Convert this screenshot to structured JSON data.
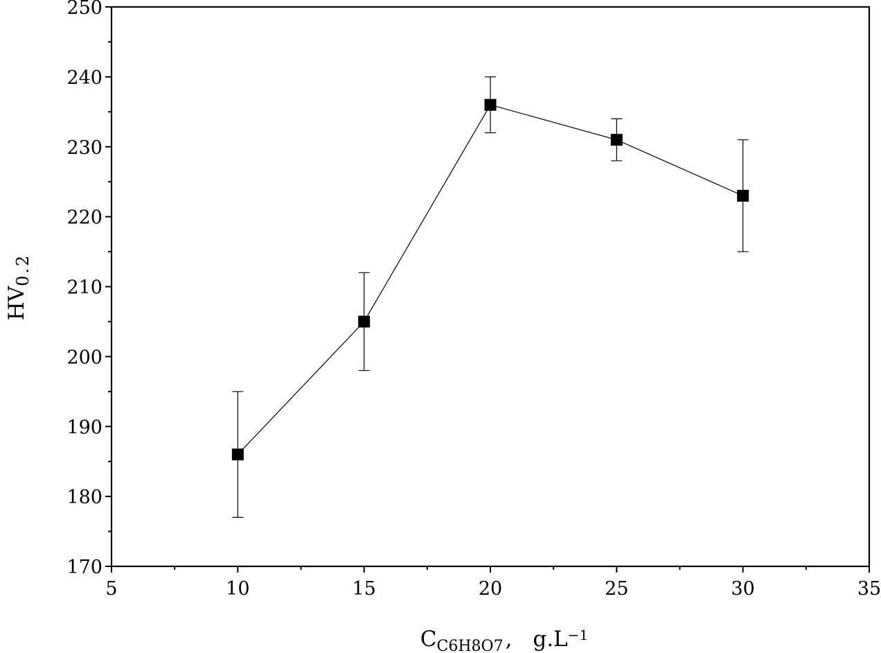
{
  "chart_data": {
    "type": "line",
    "title": "",
    "xlabel": {
      "main": "C",
      "sub": "C6H8O7",
      "sep": ",",
      "unit": "g.L",
      "sup": "−1"
    },
    "ylabel": {
      "main": "HV",
      "sub": "0.2"
    },
    "xlim": [
      5,
      35
    ],
    "ylim": [
      170,
      250
    ],
    "x_ticks": [
      5,
      10,
      15,
      20,
      25,
      30,
      35
    ],
    "y_ticks": [
      170,
      180,
      190,
      200,
      210,
      220,
      230,
      240,
      250
    ],
    "x_minor_step": 2.5,
    "y_minor_step": 5,
    "grid": false,
    "marker": "square",
    "series_color": "#000000",
    "series": [
      {
        "points": [
          {
            "x": 10,
            "y": 186,
            "err_low": 177,
            "err_high": 195
          },
          {
            "x": 15,
            "y": 205,
            "err_low": 198,
            "err_high": 212
          },
          {
            "x": 20,
            "y": 236,
            "err_low": 232,
            "err_high": 240
          },
          {
            "x": 25,
            "y": 231,
            "err_low": 228,
            "err_high": 234
          },
          {
            "x": 30,
            "y": 223,
            "err_low": 215,
            "err_high": 231
          }
        ]
      }
    ]
  }
}
